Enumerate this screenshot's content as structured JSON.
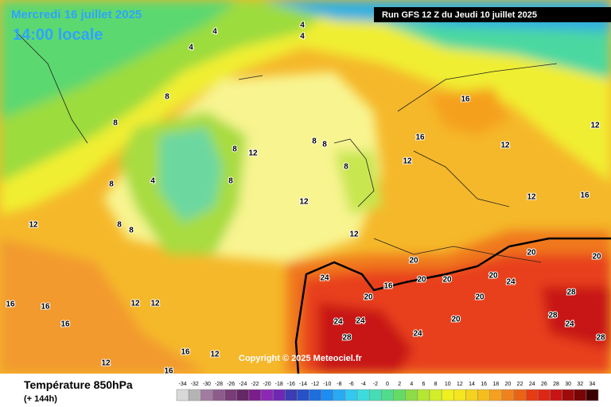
{
  "header": {
    "date": "Mercredi 16 juillet 2025",
    "time": "14:00 locale",
    "run": "Run GFS 12 Z du Jeudi 10 juillet 2025"
  },
  "copyright": "Copyright © 2025 Meteociel.fr",
  "legend": {
    "title": "Température 850hPa",
    "lead_time": "(+ 144h)",
    "ticks": [
      -34,
      -32,
      -30,
      -28,
      -26,
      -24,
      -22,
      -20,
      -18,
      -16,
      -14,
      -12,
      -10,
      -8,
      -6,
      -4,
      -2,
      0,
      2,
      4,
      6,
      8,
      10,
      12,
      14,
      16,
      18,
      20,
      22,
      24,
      26,
      28,
      30,
      32,
      34
    ],
    "colors": [
      "#d8d8d8",
      "#b4b4b4",
      "#a07ca0",
      "#8c5c8c",
      "#783c78",
      "#642864",
      "#7a1e8c",
      "#8c28b4",
      "#6e28b4",
      "#3c3cb4",
      "#2850c8",
      "#1e6edc",
      "#1e8cf0",
      "#28aaf5",
      "#32c8f0",
      "#3cdcdc",
      "#46dcb4",
      "#50dc8c",
      "#64dc64",
      "#8cdc46",
      "#b4e632",
      "#d2ee28",
      "#f0f01e",
      "#f5e61e",
      "#f5d21e",
      "#f5be1e",
      "#f5a01e",
      "#f0821e",
      "#eb6414",
      "#e63c14",
      "#dc2814",
      "#c81414",
      "#a00a0a",
      "#780505",
      "#3c0000"
    ]
  },
  "contour_labels": [
    4,
    4,
    4,
    4,
    8,
    8,
    4,
    8,
    8,
    8,
    12,
    8,
    8,
    12,
    8,
    12,
    16,
    16,
    12,
    12,
    12,
    16,
    12,
    20,
    20,
    24,
    20,
    16,
    20,
    20,
    24,
    24,
    28,
    24,
    20,
    24,
    28,
    28,
    24,
    28,
    16,
    16,
    16,
    12,
    12,
    16,
    12,
    16,
    12,
    12,
    8,
    8,
    20,
    20,
    20
  ]
}
